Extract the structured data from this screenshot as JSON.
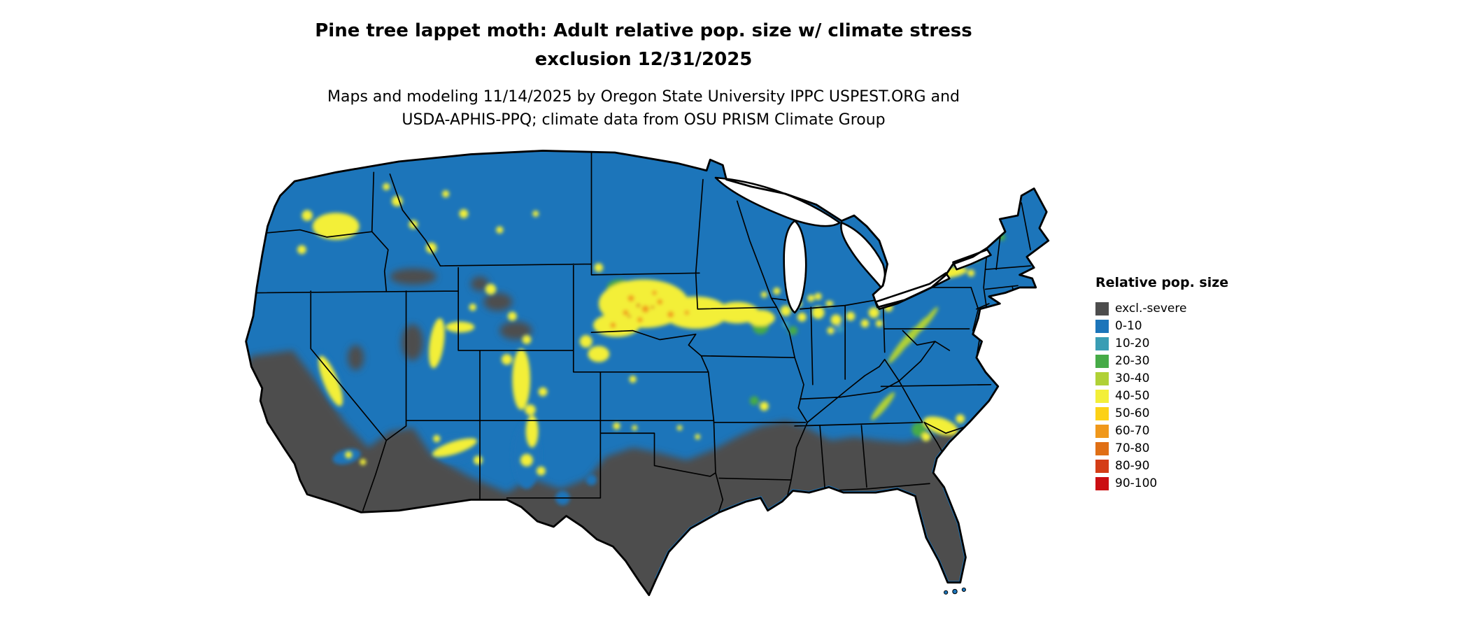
{
  "header": {
    "title_lines": [
      "Pine tree lappet moth: Adult relative pop. size w/ climate stress",
      "exclusion 12/31/2025"
    ],
    "subtitle_lines": [
      "Maps and modeling 11/14/2025 by Oregon State University IPPC USPEST.ORG and",
      "USDA-APHIS-PPQ; climate data from OSU PRISM Climate Group"
    ]
  },
  "map": {
    "region": "Continental United States",
    "type": "raster-risk-map",
    "land_base_color": "#1c75ba",
    "water_background_color": "#ffffff",
    "border_color": "#000000"
  },
  "legend": {
    "title": "Relative pop. size",
    "items": [
      {
        "id": "excl",
        "label": "excl.-severe",
        "color": "#4d4d4d"
      },
      {
        "id": "r0",
        "label": "0-10",
        "color": "#1c75ba"
      },
      {
        "id": "r10",
        "label": "10-20",
        "color": "#3a9db4"
      },
      {
        "id": "r20",
        "label": "20-30",
        "color": "#46ab47"
      },
      {
        "id": "r30",
        "label": "30-40",
        "color": "#b0d136"
      },
      {
        "id": "r40",
        "label": "40-50",
        "color": "#f3ef39"
      },
      {
        "id": "r50",
        "label": "50-60",
        "color": "#fcd116"
      },
      {
        "id": "r60",
        "label": "60-70",
        "color": "#f0981b"
      },
      {
        "id": "r70",
        "label": "70-80",
        "color": "#e06f15"
      },
      {
        "id": "r80",
        "label": "80-90",
        "color": "#d43d17"
      },
      {
        "id": "r90",
        "label": "90-100",
        "color": "#cb0e12"
      }
    ]
  }
}
